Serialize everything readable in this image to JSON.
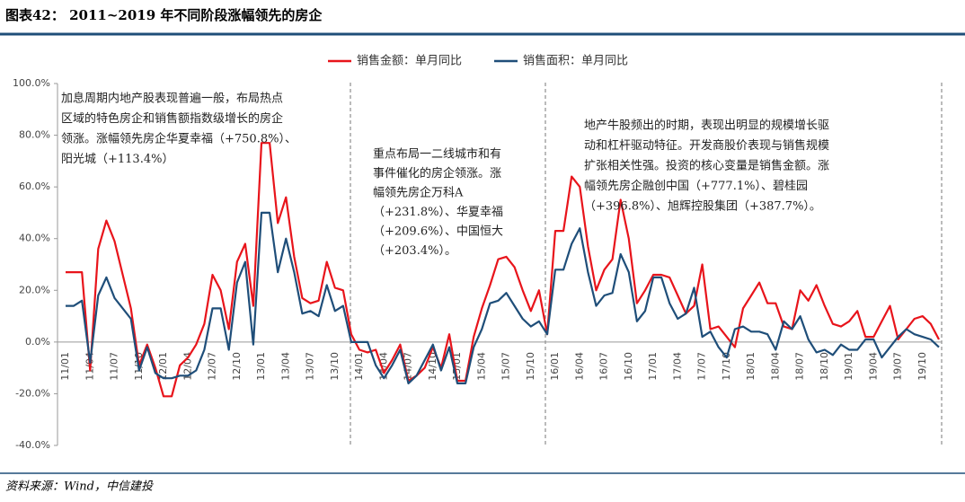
{
  "header": {
    "title": "图表42：  2011~2019 年不同阶段涨幅领先的房企"
  },
  "chart_data": {
    "type": "line",
    "categories": [
      "11/01",
      null,
      null,
      "11/04",
      null,
      null,
      "11/07",
      null,
      null,
      "11/10",
      null,
      null,
      "12/01",
      null,
      null,
      "12/04",
      null,
      null,
      "12/07",
      null,
      null,
      "12/10",
      null,
      null,
      "13/01",
      null,
      null,
      "13/04",
      null,
      null,
      "13/07",
      null,
      null,
      "13/10",
      null,
      null,
      "14/01",
      null,
      null,
      "14/04",
      null,
      null,
      "14/07",
      null,
      null,
      "14/10",
      null,
      null,
      "15/01",
      null,
      null,
      "15/04",
      null,
      null,
      "15/07",
      null,
      null,
      "15/10",
      null,
      null,
      "16/01",
      null,
      null,
      "16/04",
      null,
      null,
      "16/07",
      null,
      null,
      "16/10",
      null,
      null,
      "17/01",
      null,
      null,
      "17/04",
      null,
      null,
      "17/07",
      null,
      null,
      "17/10",
      null,
      null,
      "18/01",
      null,
      null,
      "18/04",
      null,
      null,
      "18/07",
      null,
      null,
      "18/10",
      null,
      null,
      "19/01",
      null,
      null,
      "19/04",
      null,
      null,
      "19/07",
      null,
      null,
      "19/10",
      null,
      null
    ],
    "series": [
      {
        "name": "销售金额：单月同比",
        "color": "#e8141b",
        "values": [
          27,
          27,
          27,
          -11,
          36,
          47,
          39,
          26,
          13,
          -9,
          -1,
          -10,
          -21,
          -21,
          -9,
          -6,
          -1,
          7,
          26,
          20,
          5,
          31,
          38,
          14,
          77,
          77,
          46,
          56,
          33,
          17,
          15,
          16,
          31,
          21,
          20,
          3,
          -3,
          -4,
          -3,
          -12,
          -7,
          -1,
          -15,
          -13,
          -10,
          -2,
          -10,
          3,
          -15,
          -15,
          2,
          13,
          22,
          32,
          33,
          29,
          20,
          12,
          20,
          3,
          43,
          43,
          64,
          60,
          37,
          20,
          28,
          32,
          55,
          40,
          15,
          20,
          26,
          26,
          25,
          18,
          11,
          14,
          30,
          5,
          6,
          2,
          -2,
          13,
          18,
          23,
          15,
          15,
          6,
          5,
          20,
          16,
          22,
          14,
          7,
          6,
          8,
          12,
          2,
          2,
          8,
          14,
          1,
          5,
          9,
          10,
          7,
          1
        ]
      },
      {
        "name": "销售面积：单月同比",
        "color": "#1f4e79",
        "values": [
          14,
          14,
          16,
          -8,
          18,
          25,
          17,
          13,
          9,
          -11,
          -2,
          -12,
          -14,
          -14,
          -13,
          -13,
          -11,
          -3,
          13,
          13,
          -3,
          23,
          31,
          -1,
          50,
          50,
          27,
          40,
          27,
          11,
          12,
          10,
          22,
          12,
          14,
          0,
          0,
          0,
          -9,
          -14,
          -9,
          -3,
          -16,
          -13,
          -7,
          -1,
          -11,
          -2,
          -16,
          -16,
          -2,
          5,
          15,
          16,
          19,
          14,
          9,
          6,
          8,
          3,
          28,
          28,
          38,
          44,
          27,
          14,
          18,
          19,
          34,
          27,
          8,
          12,
          25,
          25,
          15,
          9,
          11,
          21,
          2,
          4,
          -2,
          -6,
          5,
          6,
          4,
          4,
          3,
          -3,
          8,
          5,
          10,
          1,
          -4,
          -3,
          -5,
          -1,
          -3,
          -3,
          1,
          1,
          -6,
          -2,
          2,
          5,
          3,
          2,
          1,
          -2
        ]
      }
    ],
    "ylim": [
      -40,
      100
    ],
    "yticks": [
      {
        "value": -40,
        "label": "-40.0%"
      },
      {
        "value": -20,
        "label": "-20.0%"
      },
      {
        "value": 0,
        "label": "0.0%"
      },
      {
        "value": 20,
        "label": "20.0%"
      },
      {
        "value": 40,
        "label": "40.0%"
      },
      {
        "value": 60,
        "label": "60.0%"
      },
      {
        "value": 80,
        "label": "80.0%"
      },
      {
        "value": 100,
        "label": "100.0%"
      }
    ],
    "annotations": [
      [
        "加息周期内地产股表现普遍一般，布局热点",
        "区域的特色房企和销售额指数级增长的房企",
        "领涨。涨幅领先房企华夏幸福（+750.8%）、",
        "阳光城（+113.4%）"
      ],
      [
        "重点布局一二线城市和有",
        "事件催化的房企领涨。涨",
        "幅领先房企万科A",
        "（+231.8%）、华夏幸福",
        "（+209.6%）、中国恒大",
        "（+203.4%）。"
      ],
      [
        "地产牛股频出的时期，表现出明显的规模增长驱",
        "动和杠杆驱动特征。开发商股价表现与销售规模",
        "扩张相关性强。投资的核心变量是销售金额。涨",
        "幅领先房企融创中国（+777.1%）、碧桂园",
        "（+396.8%）、旭辉控股集团（+387.7%）。"
      ]
    ]
  },
  "footer": {
    "source": "资料来源：Wind，中信建投"
  }
}
